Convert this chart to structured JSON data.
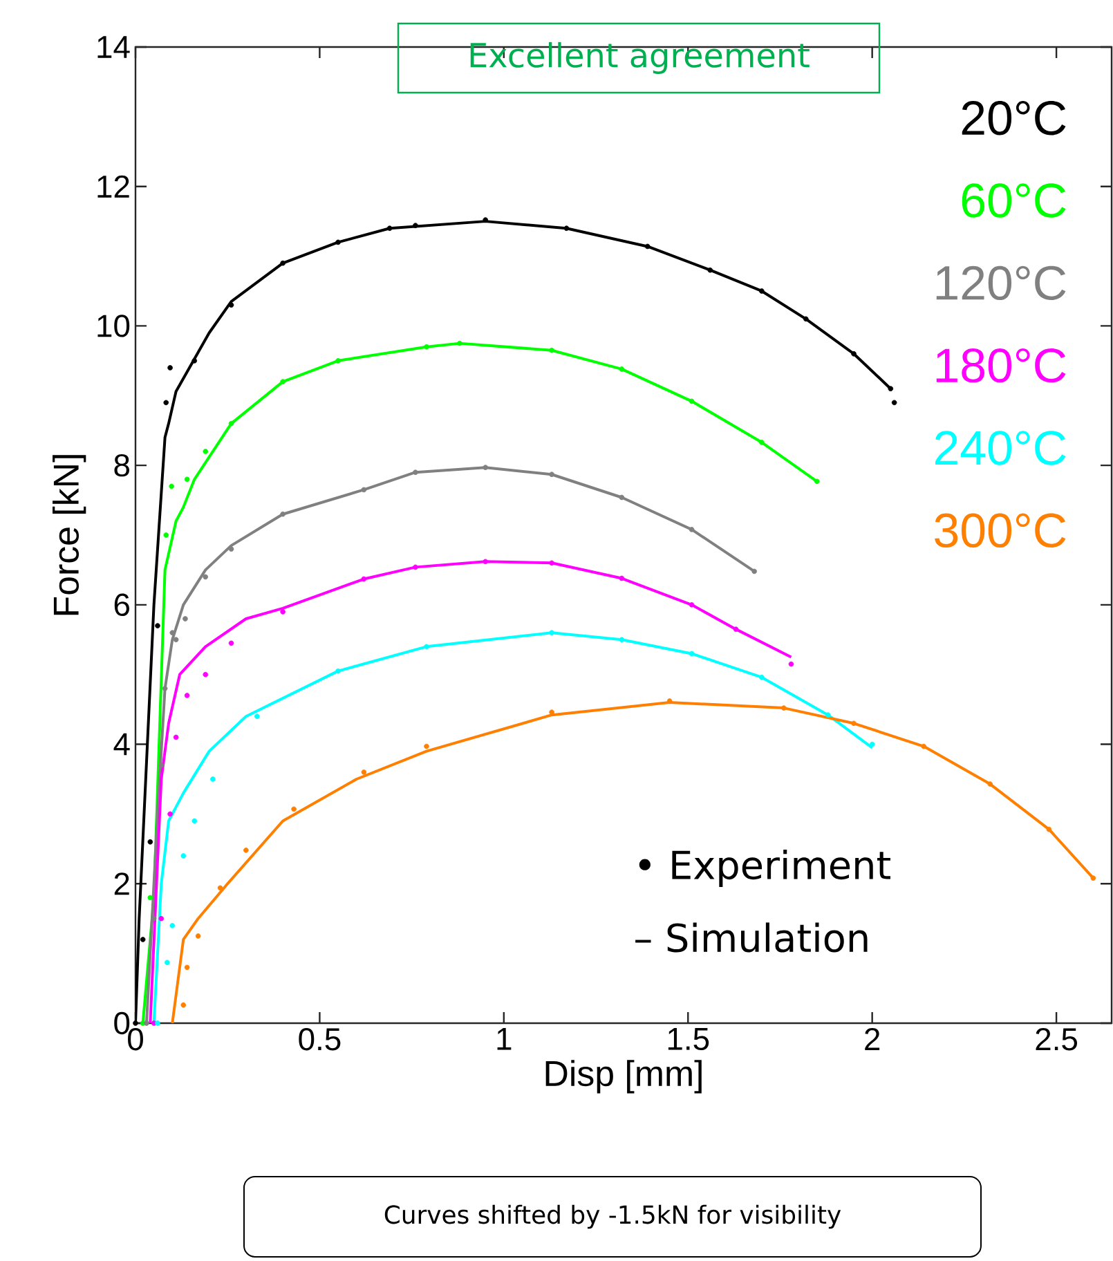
{
  "chart_data": {
    "type": "scatter",
    "xlabel": "Disp [mm]",
    "ylabel": "Force [kN]",
    "xlim": [
      0,
      2.65
    ],
    "ylim": [
      0,
      14
    ],
    "xticks": [
      0,
      0.5,
      1,
      1.5,
      2,
      2.5
    ],
    "yticks": [
      0,
      2,
      4,
      6,
      8,
      10,
      12,
      14
    ],
    "legend": "top right",
    "annotations": [
      "Excellent agreement",
      "• Experiment",
      "– Simulation",
      "Curves shifted by -1.5kN for visibility"
    ],
    "series": [
      {
        "name": "20°C",
        "marker": "circle",
        "color": "#000000",
        "x": [
          0.0,
          0.02,
          0.04,
          0.06,
          0.083,
          0.094,
          0.16,
          0.26,
          0.4,
          0.55,
          0.69,
          0.76,
          0.95,
          1.17,
          1.39,
          1.56,
          1.7,
          1.82,
          1.95,
          2.05,
          2.06
        ],
        "values": [
          0.0,
          1.2,
          2.6,
          5.7,
          8.9,
          9.4,
          9.5,
          10.3,
          10.9,
          11.2,
          11.4,
          11.44,
          11.52,
          11.4,
          11.14,
          10.8,
          10.5,
          10.1,
          9.6,
          9.1,
          8.9
        ]
      },
      {
        "type": "line",
        "color": "#000000",
        "x": [
          0.0,
          0.01,
          0.05,
          0.08,
          0.09,
          0.11,
          0.2,
          0.26,
          0.4,
          0.55,
          0.69,
          0.95,
          1.17,
          1.39,
          1.56,
          1.7,
          1.82,
          1.95,
          2.05
        ],
        "values": [
          0.0,
          1.5,
          6.0,
          8.4,
          8.6,
          9.06,
          9.9,
          10.35,
          10.9,
          11.2,
          11.4,
          11.5,
          11.4,
          11.14,
          10.8,
          10.5,
          10.1,
          9.6,
          9.1
        ]
      },
      {
        "name": "60°C",
        "marker": "circle",
        "color": "#00ff00",
        "x": [
          0.02,
          0.04,
          0.083,
          0.098,
          0.14,
          0.19,
          0.26,
          0.4,
          0.55,
          0.79,
          0.88,
          1.13,
          1.32,
          1.51,
          1.7,
          1.85
        ],
        "values": [
          0.0,
          1.8,
          7.0,
          7.7,
          7.8,
          8.2,
          8.6,
          9.2,
          9.5,
          9.7,
          9.75,
          9.65,
          9.38,
          8.92,
          8.33,
          7.77
        ]
      },
      {
        "type": "line",
        "color": "#00ff00",
        "x": [
          0.02,
          0.05,
          0.08,
          0.11,
          0.13,
          0.16,
          0.26,
          0.4,
          0.55,
          0.79,
          0.88,
          1.13,
          1.32,
          1.51,
          1.7,
          1.85
        ],
        "values": [
          0.0,
          1.8,
          6.5,
          7.2,
          7.4,
          7.8,
          8.6,
          9.2,
          9.5,
          9.7,
          9.75,
          9.65,
          9.38,
          8.92,
          8.33,
          7.77
        ]
      },
      {
        "name": "120°C",
        "marker": "circle",
        "color": "#808080",
        "x": [
          0.03,
          0.05,
          0.07,
          0.08,
          0.1,
          0.11,
          0.135,
          0.19,
          0.26,
          0.4,
          0.62,
          0.76,
          0.95,
          1.13,
          1.32,
          1.51,
          1.68
        ],
        "values": [
          0.0,
          1.5,
          3.7,
          4.8,
          5.6,
          5.5,
          5.8,
          6.4,
          6.8,
          7.3,
          7.65,
          7.9,
          7.97,
          7.87,
          7.54,
          7.08,
          6.48
        ]
      },
      {
        "type": "line",
        "color": "#808080",
        "x": [
          0.03,
          0.06,
          0.08,
          0.1,
          0.13,
          0.19,
          0.26,
          0.4,
          0.62,
          0.76,
          0.95,
          1.13,
          1.32,
          1.51,
          1.68
        ],
        "values": [
          0.0,
          3.0,
          4.8,
          5.5,
          6.0,
          6.5,
          6.85,
          7.3,
          7.65,
          7.9,
          7.97,
          7.87,
          7.54,
          7.08,
          6.48
        ]
      },
      {
        "name": "180°C",
        "marker": "circle",
        "color": "#ff00ff",
        "x": [
          0.05,
          0.07,
          0.094,
          0.11,
          0.14,
          0.19,
          0.26,
          0.4,
          0.62,
          0.76,
          0.95,
          1.13,
          1.32,
          1.51,
          1.63,
          1.78
        ],
        "values": [
          0.0,
          1.5,
          3.0,
          4.1,
          4.7,
          5.0,
          5.45,
          5.9,
          6.37,
          6.54,
          6.62,
          6.6,
          6.38,
          6.0,
          5.65,
          5.15
        ]
      },
      {
        "type": "line",
        "color": "#ff00ff",
        "x": [
          0.04,
          0.07,
          0.09,
          0.12,
          0.19,
          0.3,
          0.4,
          0.62,
          0.76,
          0.95,
          1.13,
          1.32,
          1.51,
          1.63,
          1.78
        ],
        "values": [
          0.0,
          3.5,
          4.3,
          5.0,
          5.4,
          5.8,
          5.95,
          6.37,
          6.54,
          6.62,
          6.6,
          6.38,
          6.0,
          5.65,
          5.25
        ]
      },
      {
        "name": "240°C",
        "marker": "circle",
        "color": "#00ffff",
        "x": [
          0.06,
          0.086,
          0.1,
          0.13,
          0.16,
          0.21,
          0.33,
          0.55,
          0.79,
          1.13,
          1.32,
          1.51,
          1.7,
          1.88,
          2.0
        ],
        "values": [
          0.0,
          0.87,
          1.4,
          2.4,
          2.9,
          3.5,
          4.4,
          5.05,
          5.4,
          5.6,
          5.5,
          5.3,
          4.96,
          4.42,
          4.0
        ]
      },
      {
        "type": "line",
        "color": "#00ffff",
        "x": [
          0.05,
          0.07,
          0.09,
          0.13,
          0.2,
          0.3,
          0.55,
          0.79,
          1.13,
          1.32,
          1.51,
          1.7,
          1.88,
          2.0
        ],
        "values": [
          0.0,
          2.0,
          2.9,
          3.3,
          3.9,
          4.4,
          5.05,
          5.4,
          5.6,
          5.5,
          5.3,
          4.96,
          4.42,
          3.95
        ]
      },
      {
        "name": "300°C",
        "marker": "circle",
        "color": "#ff8000",
        "x": [
          0.13,
          0.14,
          0.17,
          0.23,
          0.3,
          0.43,
          0.62,
          0.79,
          1.13,
          1.45,
          1.76,
          1.95,
          2.14,
          2.32,
          2.48,
          2.6
        ],
        "values": [
          0.26,
          0.8,
          1.25,
          1.94,
          2.48,
          3.07,
          3.6,
          3.97,
          4.46,
          4.62,
          4.52,
          4.3,
          3.97,
          3.43,
          2.78,
          2.08
        ]
      },
      {
        "type": "line",
        "color": "#ff8000",
        "x": [
          0.1,
          0.12,
          0.13,
          0.17,
          0.25,
          0.4,
          0.6,
          0.79,
          1.13,
          1.45,
          1.76,
          1.95,
          2.14,
          2.32,
          2.48,
          2.6
        ],
        "values": [
          0.0,
          0.8,
          1.2,
          1.5,
          2.0,
          2.9,
          3.5,
          3.9,
          4.42,
          4.6,
          4.52,
          4.3,
          3.97,
          3.43,
          2.78,
          2.08
        ]
      }
    ]
  }
}
